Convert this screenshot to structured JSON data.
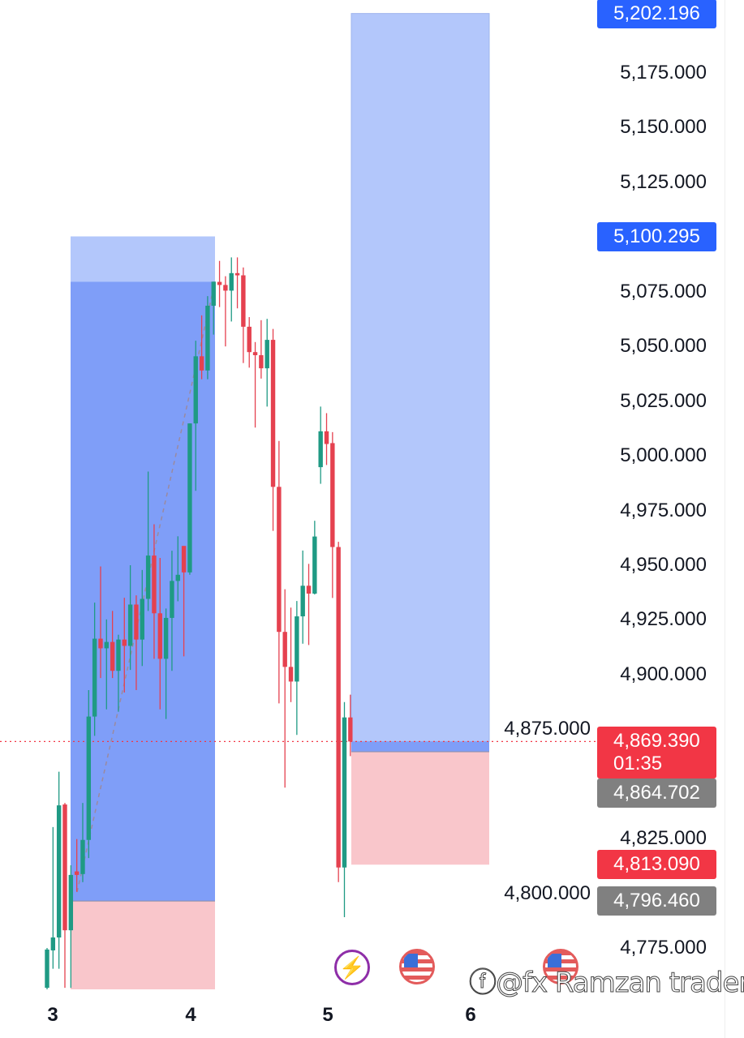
{
  "chart_data": {
    "type": "candlestick",
    "title": "",
    "price_axis": {
      "range": [
        4756,
        5208
      ],
      "ticks": [
        "5,175.000",
        "5,150.000",
        "5,125.000",
        "5,075.000",
        "5,050.000",
        "5,025.000",
        "5,000.000",
        "4,975.000",
        "4,950.000",
        "4,925.000",
        "4,900.000",
        "4,875.000",
        "4,825.000",
        "4,800.000",
        "4,775.000"
      ],
      "tick_values": [
        5175,
        5150,
        5125,
        5075,
        5050,
        5025,
        5000,
        4975,
        4950,
        4925,
        4900,
        4875,
        4825,
        4800,
        4775
      ]
    },
    "time_axis": {
      "ticks": [
        "3",
        "4",
        "5",
        "6"
      ]
    },
    "candles_ohlc": [
      [
        4756.8,
        4775,
        4755,
        4774.3
      ],
      [
        4773.9,
        4830.3,
        4765.5,
        4779.8
      ],
      [
        4779.8,
        4855.6,
        4765.5,
        4840.2
      ],
      [
        4840.6,
        4841.3,
        4756.8,
        4783.1
      ],
      [
        4783.1,
        4812.8,
        4756.8,
        4808.4
      ],
      [
        4810,
        4824.8,
        4800.7,
        4808.4
      ],
      [
        4808.8,
        4841.3,
        4805.1,
        4824.4
      ],
      [
        4824.4,
        4892.9,
        4816.1,
        4880.8
      ],
      [
        4880.8,
        4932.9,
        4872,
        4916.4
      ],
      [
        4916.4,
        4949.4,
        4898.4,
        4912
      ],
      [
        4912,
        4925.2,
        4884.1,
        4914.9
      ],
      [
        4914.9,
        4929.1,
        4898.4,
        4901.7
      ],
      [
        4901.7,
        4918.2,
        4883,
        4916
      ],
      [
        4916,
        4935.1,
        4891.8,
        4913.1
      ],
      [
        4913.1,
        4950,
        4902.1,
        4932
      ],
      [
        4932,
        4936.2,
        4892.9,
        4916
      ],
      [
        4916,
        4947.8,
        4903.9,
        4934.6
      ],
      [
        4934.6,
        4992.8,
        4929.1,
        4954.4
      ],
      [
        4954.4,
        4968.7,
        4907.2,
        4928
      ],
      [
        4928,
        4953.3,
        4884.1,
        4907.2
      ],
      [
        4907.2,
        4930.2,
        4879.7,
        4925.9
      ],
      [
        4925.9,
        4956.6,
        4901.7,
        4942.8
      ],
      [
        4942.8,
        4963.2,
        4933.5,
        4945.6
      ],
      [
        4958.8,
        4958.8,
        4908.3,
        4946.7
      ],
      [
        4946.7,
        5014.8,
        4945.6,
        5014.8
      ],
      [
        5014.8,
        5052.6,
        4984,
        5045.5
      ],
      [
        5045.5,
        5064.2,
        5035,
        5039
      ],
      [
        5039,
        5073,
        5035,
        5068.6
      ],
      [
        5068.6,
        5079.6,
        5055.4,
        5079.6
      ],
      [
        5079.5,
        5089.1,
        5068,
        5078.1
      ],
      [
        5078.1,
        5082.1,
        5050,
        5075.5
      ],
      [
        5075.5,
        5090.7,
        5061.4,
        5083.5
      ],
      [
        5083.5,
        5090.7,
        5067.4,
        5082.5
      ],
      [
        5082.5,
        5086.1,
        5042.4,
        5059
      ],
      [
        5059,
        5063.4,
        5040.3,
        5047.4
      ],
      [
        5047.4,
        5052,
        5012.9,
        5046
      ],
      [
        5046,
        5062,
        5035.3,
        5040
      ],
      [
        5040,
        5062.6,
        5022.5,
        5053
      ],
      [
        5053,
        5058,
        4965.7,
        4985.8
      ],
      [
        4985.8,
        5006.8,
        4886.8,
        4919.5
      ],
      [
        4919.5,
        4939,
        4848.3,
        4903.5
      ],
      [
        4903.5,
        4930.6,
        4887.4,
        4896.8
      ],
      [
        4896.8,
        4933.6,
        4872.4,
        4926.6
      ],
      [
        4926.6,
        4956.7,
        4914.1,
        4940.6
      ],
      [
        4940.6,
        4950.6,
        4913.5,
        4937
      ],
      [
        4937,
        4970.3,
        4936.6,
        4963.1
      ],
      [
        4994.8,
        5022.5,
        4987.2,
        5011.2
      ],
      [
        5011.2,
        5019.5,
        4995.8,
        5005.4
      ],
      [
        5005.8,
        5010.8,
        4935,
        4958.3
      ],
      [
        4958.3,
        4960.7,
        4805.1,
        4811.8
      ],
      [
        4811.8,
        4887.4,
        4789.1,
        4880.4
      ],
      [
        4880.4,
        4890.8,
        4862.7,
        4869.39
      ]
    ],
    "current_price": {
      "label": "4,869.390",
      "value": 4869.39,
      "countdown": "01:35"
    },
    "long_positions": [
      {
        "entry": 4796.46,
        "entry_label": "4,796.460",
        "target": 5100.295,
        "target_label": "5,100.295",
        "filled_to": 5079.6
      },
      {
        "entry": 4864.702,
        "entry_label": "4,864.702",
        "target": 5202.196,
        "target_label": "5,202.196",
        "stop": 4813.09,
        "stop_label": "4,813.090"
      }
    ],
    "colors": {
      "up": "#1f9a84",
      "down": "#e5414f",
      "target_zone": "#b3c7fb",
      "filled_zone": "#7f9ef8",
      "stop_zone": "#f9c6cb",
      "price_label": "#f23645",
      "target_label": "#2962ff",
      "entry_label": "#808080"
    },
    "grid": false
  },
  "events": [
    {
      "icon": "lightning-icon"
    },
    {
      "icon": "us-flag-icon"
    },
    {
      "icon": "us-flag-icon"
    }
  ],
  "watermark": "@fx Ramzan trader"
}
